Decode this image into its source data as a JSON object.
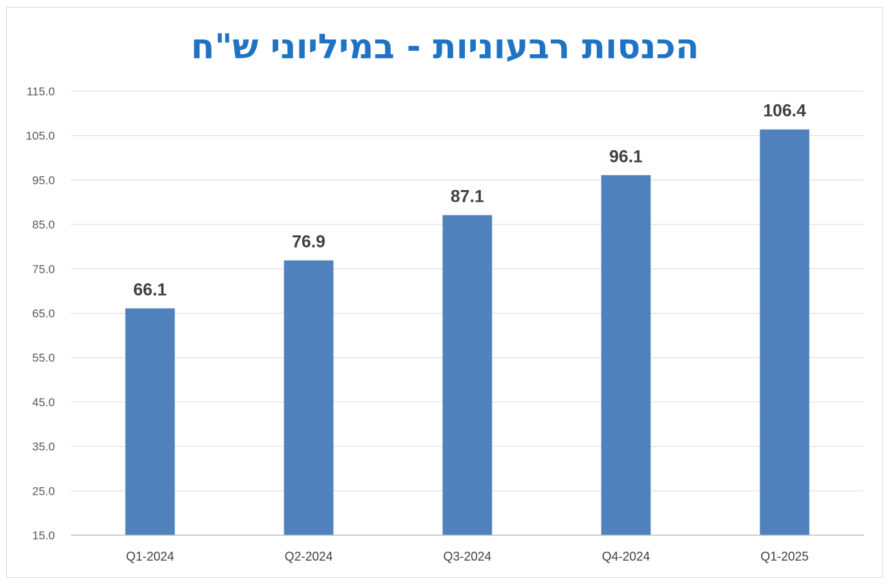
{
  "chart_data": {
    "type": "bar",
    "title": "הכנסות רבעוניות - במיליוני ש\"ח",
    "categories": [
      "Q1-2024",
      "Q2-2024",
      "Q3-2024",
      "Q4-2024",
      "Q1-2025"
    ],
    "values": [
      66.1,
      76.9,
      87.1,
      96.1,
      106.4
    ],
    "value_labels": [
      "66.1",
      "76.9",
      "87.1",
      "96.1",
      "106.4"
    ],
    "ylim": [
      15,
      115
    ],
    "yticks": [
      "15.0",
      "25.0",
      "35.0",
      "45.0",
      "55.0",
      "65.0",
      "75.0",
      "85.0",
      "95.0",
      "105.0",
      "115.0"
    ],
    "grid": true,
    "legend": "none",
    "colors": {
      "bar": "#4f81bd",
      "title": "#1f73c4",
      "grid": "#d9d9d9",
      "axis": "#bfbfbf"
    }
  }
}
